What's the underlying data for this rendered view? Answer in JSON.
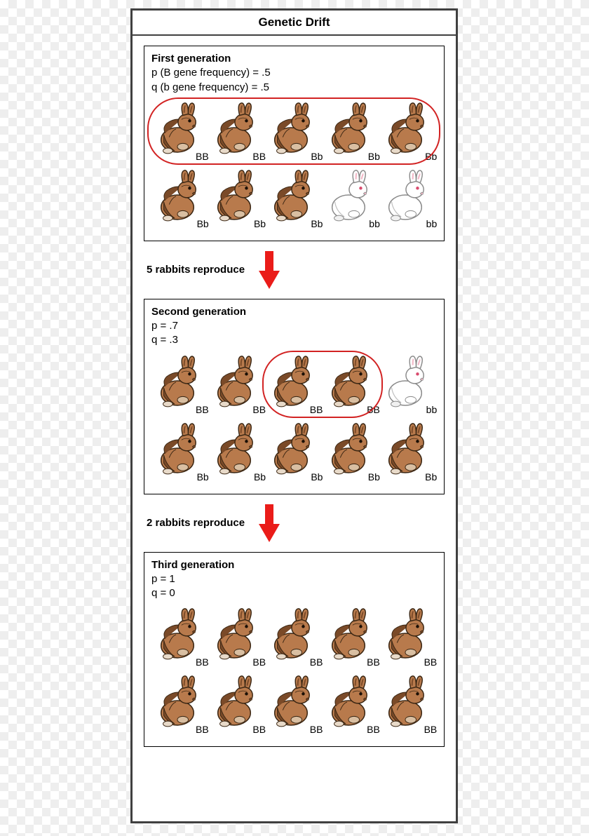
{
  "title": "Genetic Drift",
  "colors": {
    "border": "#404040",
    "circle": "#d22323",
    "arrow": "#ea1c19",
    "brown_body": "#b87a4c",
    "brown_dark": "#7a4a28",
    "brown_outline": "#3a2613",
    "brown_belly": "#d9bfa2",
    "white_body": "#ffffff",
    "white_outline": "#8a8a8a",
    "white_inner_ear": "#f2b7c6",
    "white_eye": "#d94b6e"
  },
  "generations": [
    {
      "title": "First generation",
      "freq_lines": [
        "p (B gene frequency) = .5",
        "q (b gene frequency) = .5"
      ],
      "rows": [
        [
          {
            "color": "brown",
            "g": "BB"
          },
          {
            "color": "brown",
            "g": "BB"
          },
          {
            "color": "brown",
            "g": "Bb"
          },
          {
            "color": "brown",
            "g": "Bb"
          },
          {
            "color": "brown",
            "g": "Bb"
          }
        ],
        [
          {
            "color": "brown",
            "g": "Bb"
          },
          {
            "color": "brown",
            "g": "Bb"
          },
          {
            "color": "brown",
            "g": "Bb"
          },
          {
            "color": "white",
            "g": "bb"
          },
          {
            "color": "white",
            "g": "bb"
          }
        ]
      ],
      "circle": {
        "row": 0,
        "start": 0,
        "end": 5
      }
    },
    {
      "title": "Second generation",
      "freq_lines": [
        "p = .7",
        "q = .3"
      ],
      "rows": [
        [
          {
            "color": "brown",
            "g": "BB"
          },
          {
            "color": "brown",
            "g": "BB"
          },
          {
            "color": "brown",
            "g": "BB"
          },
          {
            "color": "brown",
            "g": "BB"
          },
          {
            "color": "white",
            "g": "bb"
          }
        ],
        [
          {
            "color": "brown",
            "g": "Bb"
          },
          {
            "color": "brown",
            "g": "Bb"
          },
          {
            "color": "brown",
            "g": "Bb"
          },
          {
            "color": "brown",
            "g": "Bb"
          },
          {
            "color": "brown",
            "g": "Bb"
          }
        ]
      ],
      "circle": {
        "row": 0,
        "start": 2,
        "end": 4
      }
    },
    {
      "title": "Third generation",
      "freq_lines": [
        "p = 1",
        "q = 0"
      ],
      "rows": [
        [
          {
            "color": "brown",
            "g": "BB"
          },
          {
            "color": "brown",
            "g": "BB"
          },
          {
            "color": "brown",
            "g": "BB"
          },
          {
            "color": "brown",
            "g": "BB"
          },
          {
            "color": "brown",
            "g": "BB"
          }
        ],
        [
          {
            "color": "brown",
            "g": "BB"
          },
          {
            "color": "brown",
            "g": "BB"
          },
          {
            "color": "brown",
            "g": "BB"
          },
          {
            "color": "brown",
            "g": "BB"
          },
          {
            "color": "brown",
            "g": "BB"
          }
        ]
      ],
      "circle": null
    }
  ],
  "transitions": [
    "5 rabbits reproduce",
    "2 rabbits reproduce"
  ]
}
